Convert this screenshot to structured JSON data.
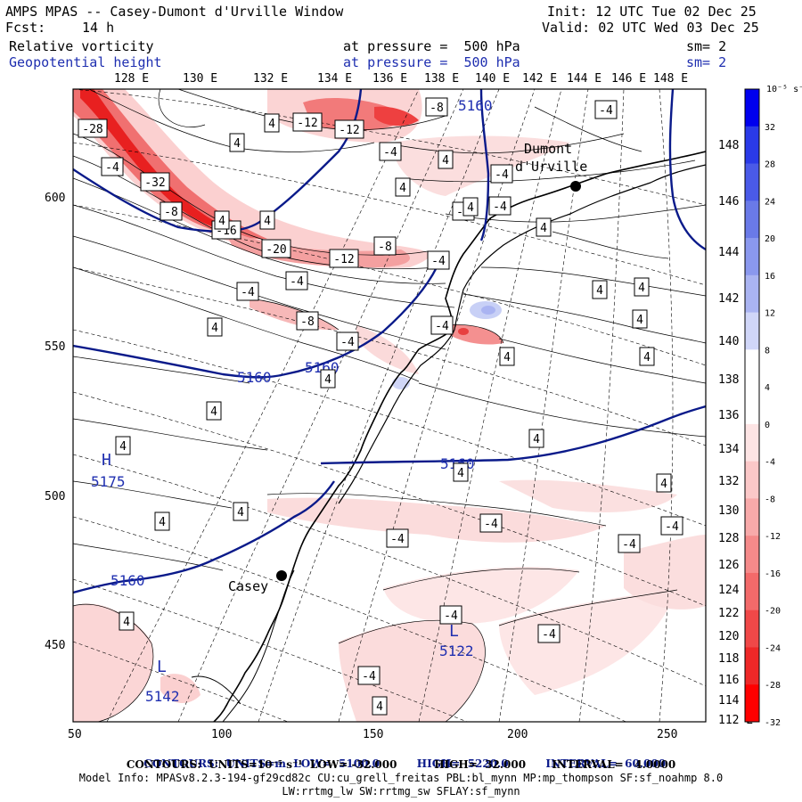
{
  "header": {
    "title": "AMPS MPAS -- Casey-Dumont d'Urville Window",
    "fcst_label": "Fcst:",
    "fcst_value": "14 h",
    "init": "Init: 12 UTC Tue 02 Dec 25",
    "valid": "Valid: 02 UTC Wed 03 Dec 25",
    "field1_name": "Relative vorticity",
    "field1_pressure": "at pressure =  500 hPa",
    "field1_sm": "sm= 2",
    "field2_name": "Geopotential height",
    "field2_pressure": "at pressure =  500 hPa",
    "field2_sm": "sm= 2"
  },
  "map": {
    "top_lon_labels": [
      "128 E",
      "130 E",
      "132 E",
      "134 E",
      "136 E",
      "138 E",
      "140 E",
      "142 E",
      "144 E",
      "146 E",
      "148 E"
    ],
    "right_lat_labels": [
      "148 E",
      "146 E",
      "144 E",
      "142 E",
      "140 E",
      "138 E",
      "136 E",
      "134 E",
      "132 E",
      "130 E",
      "128 E",
      "126 E",
      "124 E",
      "122 E",
      "120 E",
      "118 E",
      "116 E",
      "114 E",
      "112 E"
    ],
    "x_ticks": [
      "50",
      "100",
      "150",
      "200",
      "250"
    ],
    "y_ticks": [
      "600",
      "550",
      "500",
      "450"
    ],
    "stations": [
      {
        "name": "Casey"
      },
      {
        "name": "Dumont\nd'Urville"
      }
    ],
    "height_labels": [
      "5160",
      "5160",
      "5160",
      "5160",
      "5160"
    ],
    "highs_lows": [
      {
        "kind": "H",
        "value": "5175"
      },
      {
        "kind": "L",
        "value": "5122"
      },
      {
        "kind": "L",
        "value": "5142"
      }
    ],
    "vort_labels": [
      "-28",
      "-4",
      "-32",
      "-8",
      "-16",
      "-20",
      "-12",
      "-8",
      "-12",
      "-12",
      "-8",
      "-4",
      "-4",
      "-4",
      "-8",
      "-4",
      "-4",
      "-4",
      "-4",
      "-4",
      "-4",
      "-4",
      "-4",
      "-4",
      "-4",
      "-4",
      "-4",
      "-4",
      "-4",
      "4",
      "4",
      "4",
      "4",
      "4",
      "4",
      "4",
      "4",
      "4",
      "4",
      "4",
      "4",
      "4",
      "4",
      "4",
      "4",
      "4",
      "4",
      "4",
      "4",
      "4",
      "4",
      "4",
      "4"
    ]
  },
  "colorbar": {
    "unit": "10⁻⁵ s⁻¹",
    "levels": [
      "32",
      "28",
      "24",
      "20",
      "16",
      "12",
      "8",
      "4",
      "0",
      "-4",
      "-8",
      "-12",
      "-16",
      "-20",
      "-24",
      "-28",
      "-32"
    ],
    "colors": [
      "#0000ee",
      "#2a3ae8",
      "#4a5ae8",
      "#6a7ae8",
      "#8a98ee",
      "#aab4f2",
      "#d0d6f8",
      "#ffffff",
      "#ffffff",
      "#fde4e4",
      "#fbc8c8",
      "#f8aaaa",
      "#f58a8a",
      "#f36a6a",
      "#f04848",
      "#ee2828",
      "#ff0000"
    ]
  },
  "footer": {
    "line1_a": "CONTOURS:  UNITS=m  LOW=  5100.0",
    "line1_b": "HIGH=  5220.0",
    "line1_c": "INTERVAL=  60.000",
    "line2": "CONTOURS:  UNITS=10⁻⁵ s⁻¹  LOW= -32.000          HIGH=  32.000       INTERVAL=   4.0000",
    "line3": "Model Info: MPASv8.2.3-194-gf29cd82c CU:cu_grell_freitas PBL:bl_mynn MP:mp_thompson SF:sf_noahmp 8.0",
    "line4": "LW:rrtmg_lw SW:rrtmg_sw SFLAY:sf_mynn"
  }
}
